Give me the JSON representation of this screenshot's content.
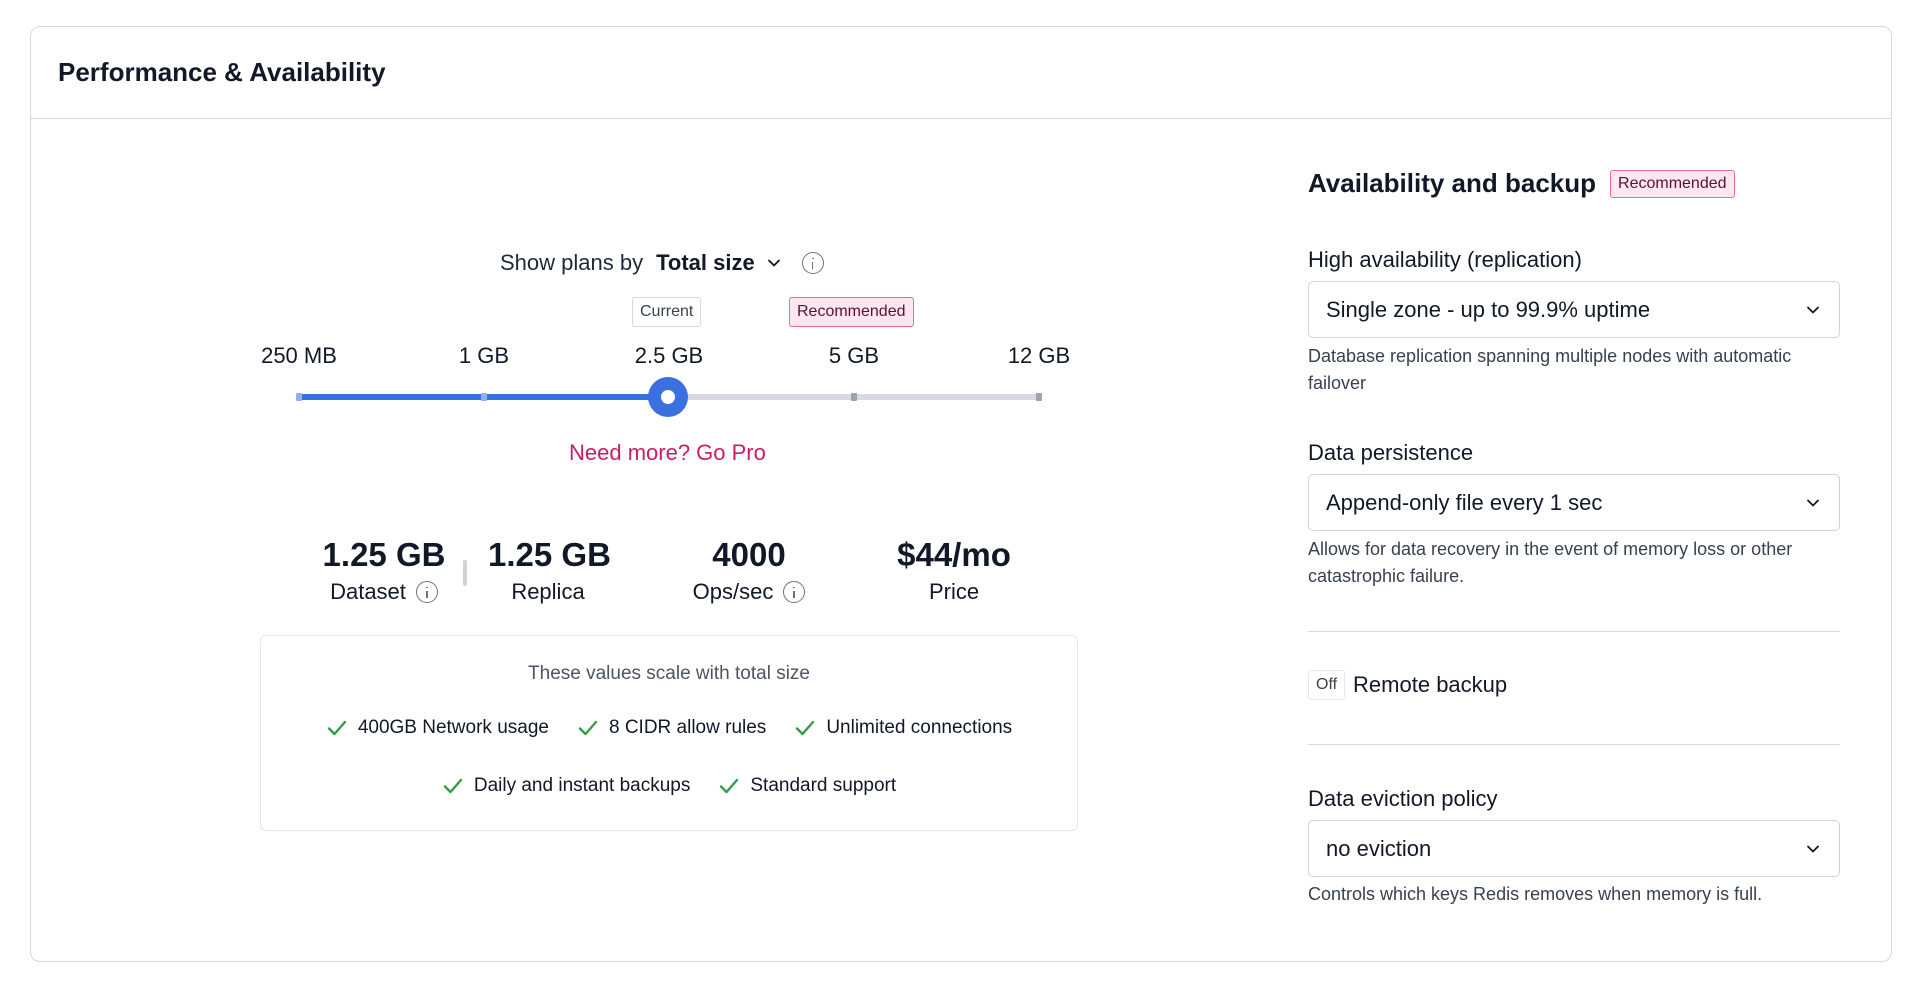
{
  "panel": {
    "title": "Performance & Availability"
  },
  "plans": {
    "show_label": "Show plans by",
    "mode_value": "Total size",
    "current_tag": "Current",
    "recommended_tag": "Recommended",
    "sizes": [
      "250 MB",
      "1 GB",
      "2.5 GB",
      "5 GB",
      "12 GB"
    ],
    "selected_index": 2,
    "current_index": 2,
    "recommended_index": 3,
    "go_pro": "Need more? Go Pro"
  },
  "stats": [
    {
      "value": "1.25 GB",
      "label": "Dataset",
      "info": true
    },
    {
      "value": "1.25 GB",
      "label": "Replica",
      "info": false
    },
    {
      "value": "4000",
      "label": "Ops/sec",
      "info": true
    },
    {
      "value": "$44/mo",
      "label": "Price",
      "info": false
    }
  ],
  "scale": {
    "title": "These values scale with total size",
    "features": [
      "400GB Network usage",
      "8 CIDR allow rules",
      "Unlimited connections",
      "Daily and instant backups",
      "Standard support"
    ]
  },
  "availability": {
    "title": "Availability and backup",
    "badge": "Recommended",
    "ha_label": "High availability (replication)",
    "ha_value": "Single zone - up to 99.9% uptime",
    "ha_help": "Database replication spanning multiple nodes with automatic failover",
    "persistence_label": "Data persistence",
    "persistence_value": "Append-only file every 1 sec",
    "persistence_help": "Allows for data recovery in the event of memory loss or other catastrophic failure.",
    "backup_toggle": "Off",
    "backup_label": "Remote backup",
    "eviction_label": "Data eviction policy",
    "eviction_value": "no eviction",
    "eviction_help": "Controls which keys Redis removes when memory is full."
  },
  "colors": {
    "accent": "#3a70e0",
    "pro": "#c81e6a",
    "check": "#2f9e44",
    "recommended_bg": "#fce7f1"
  },
  "icons": {
    "dropdown": "chevron-down-icon",
    "info": "info-icon",
    "check": "check-icon"
  }
}
